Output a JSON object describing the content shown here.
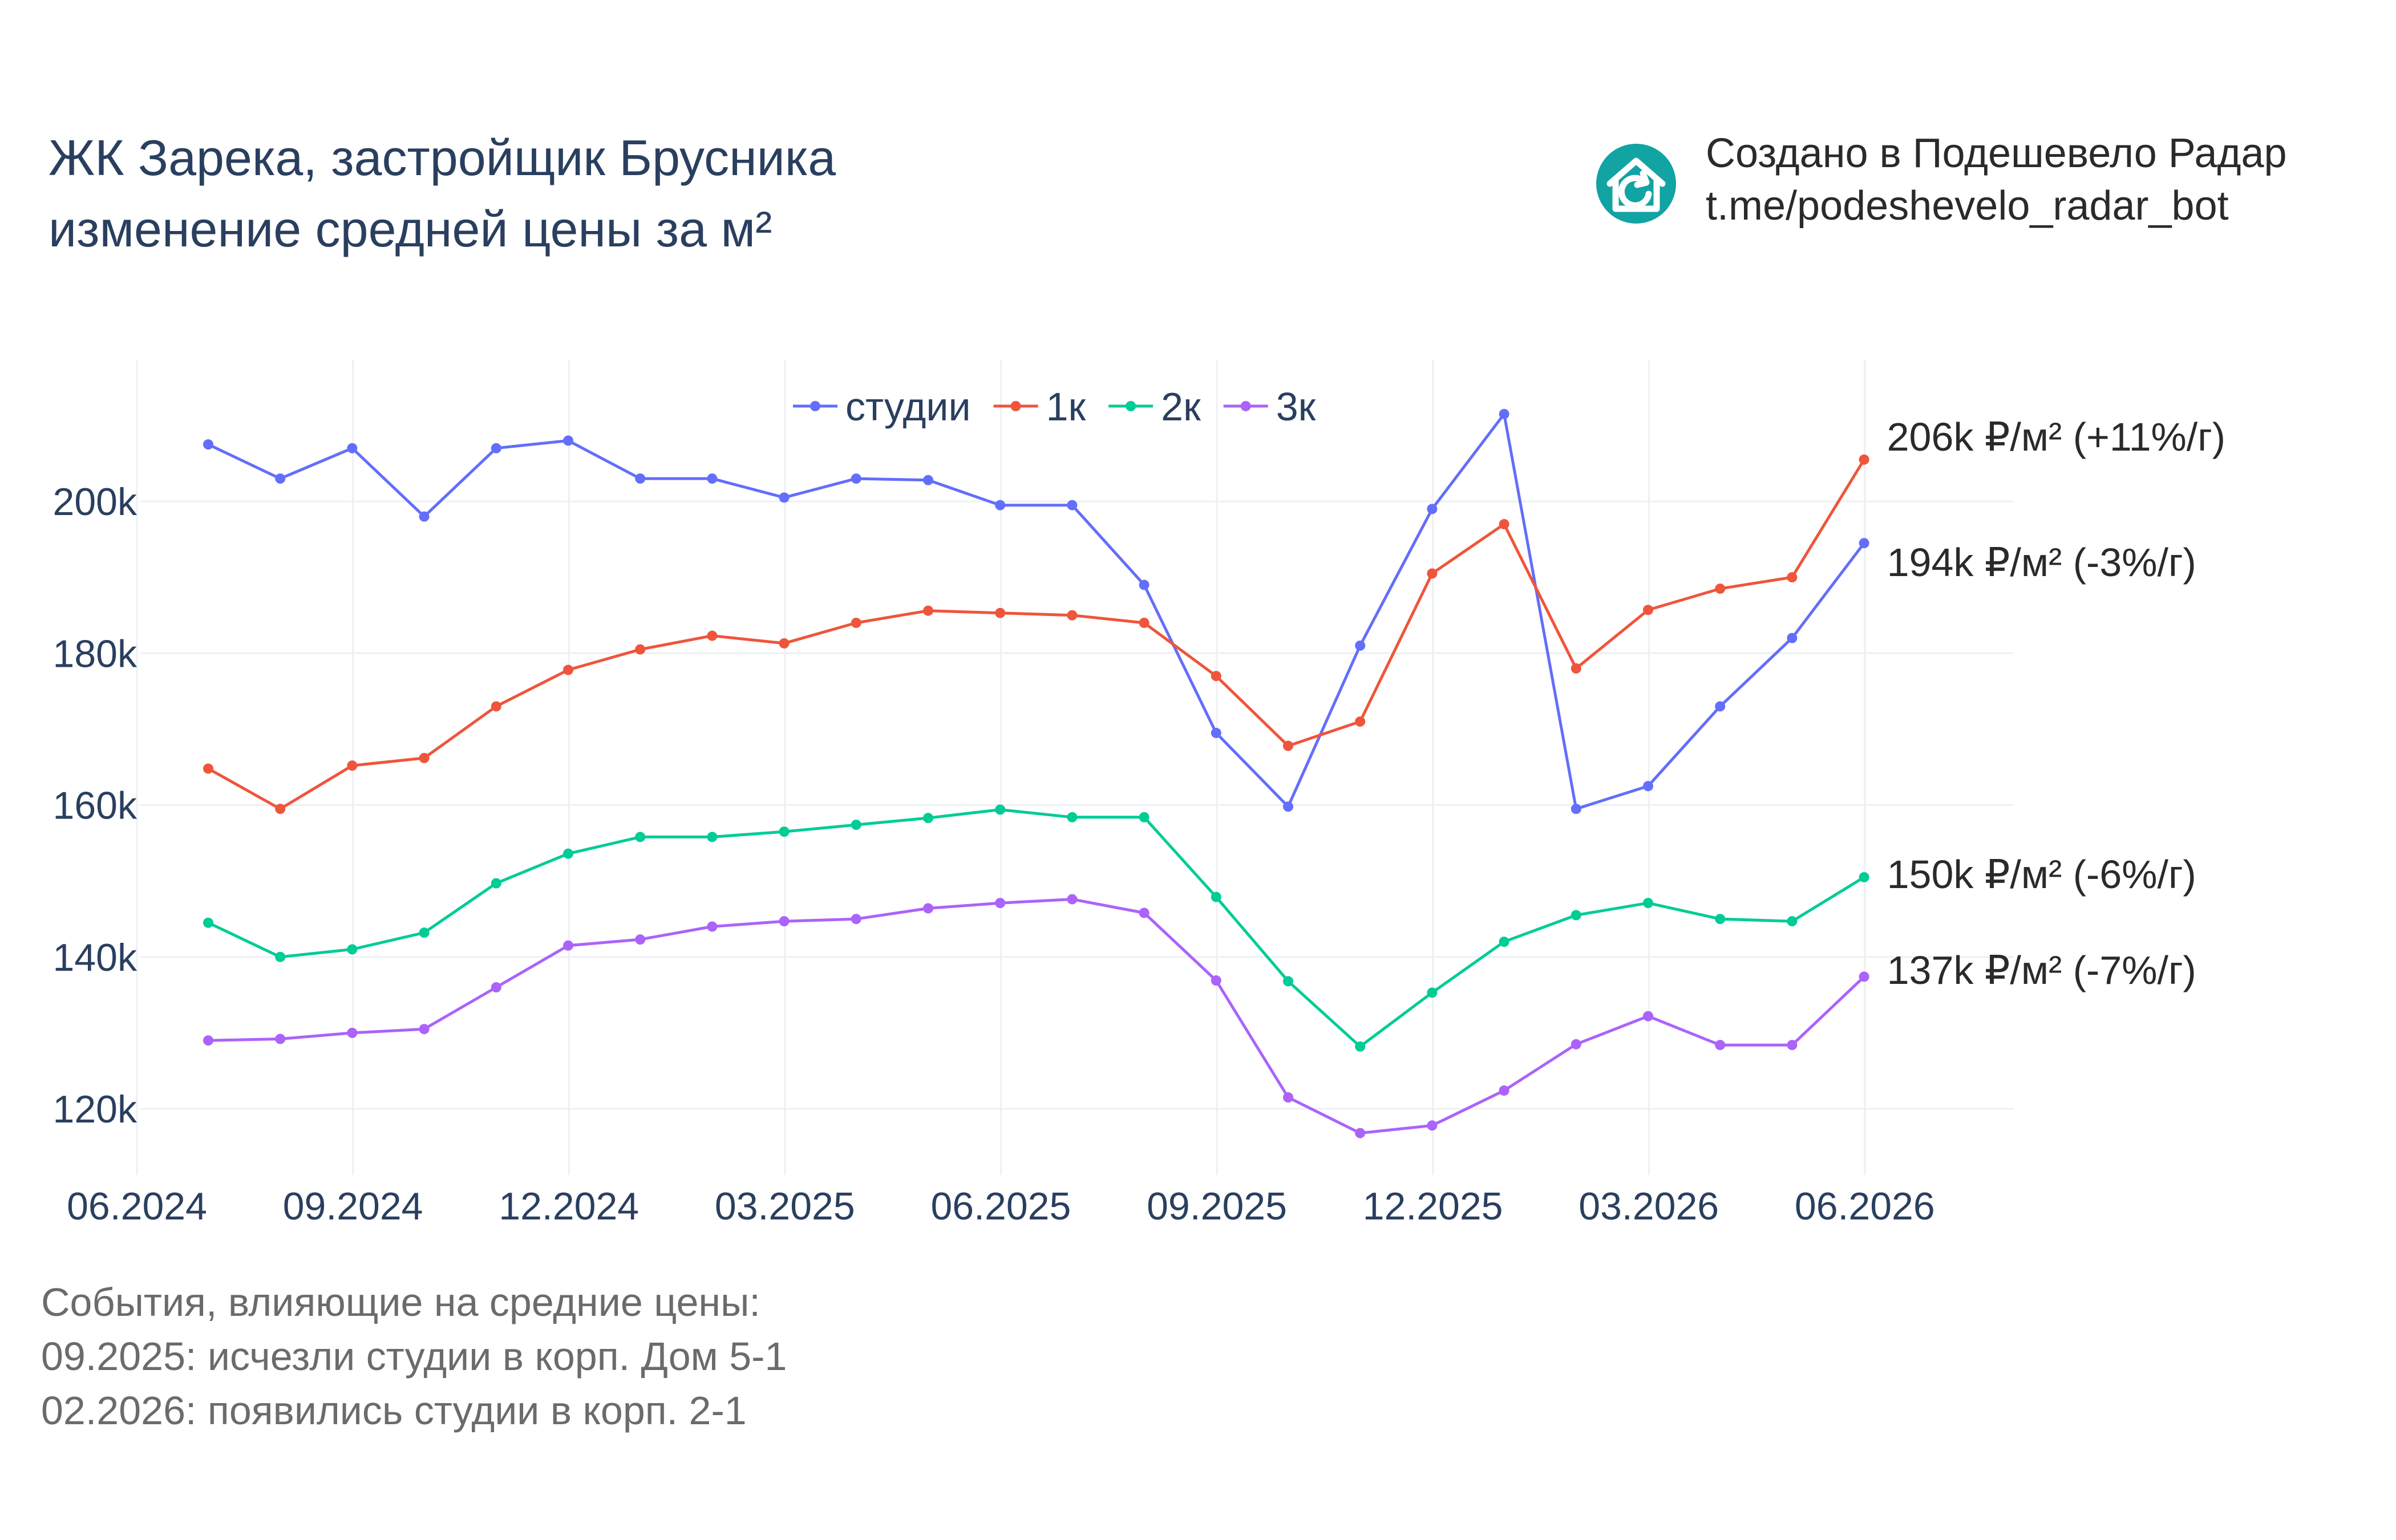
{
  "header": {
    "title_line1": "ЖК Зарека, застройщик Брусника",
    "title_line2": "изменение средней цены за м²",
    "credit_line1": "Создано в Подешевело Радар",
    "credit_line2": "t.me/podeshevelo_radar_bot",
    "logo_icon": "house-refresh-icon",
    "logo_color": "#12a3a3"
  },
  "notes": {
    "heading": "События, влияющие на средние цены:",
    "lines": [
      "09.2025: исчезли студии в корп. Дом 5-1",
      "02.2026: появились студии в корп. 2-1"
    ]
  },
  "chart_data": {
    "type": "line",
    "x": [
      "07.2024",
      "08.2024",
      "09.2024",
      "10.2024",
      "11.2024",
      "12.2024",
      "01.2025",
      "02.2025",
      "03.2025",
      "04.2025",
      "05.2025",
      "06.2025",
      "07.2025",
      "08.2025",
      "09.2025",
      "10.2025",
      "11.2025",
      "12.2025",
      "01.2026",
      "02.2026",
      "03.2026",
      "04.2026",
      "05.2026",
      "06.2026"
    ],
    "x_ticks": [
      "06.2024",
      "09.2024",
      "12.2024",
      "03.2025",
      "06.2025",
      "09.2025",
      "12.2025",
      "03.2026",
      "06.2026"
    ],
    "y_ticks": [
      "120k",
      "140k",
      "160k",
      "180k",
      "200k"
    ],
    "ylim": [
      111000,
      218000
    ],
    "grid": true,
    "legend_position": "top-center",
    "series": [
      {
        "name": "студии",
        "color": "#636efa",
        "values": [
          207500,
          203000,
          207000,
          198000,
          207000,
          208000,
          203000,
          203000,
          200500,
          203000,
          202800,
          199500,
          199500,
          189000,
          169500,
          159800,
          181000,
          199000,
          211500,
          159500,
          162500,
          173000,
          182000,
          194500
        ],
        "end_label": "194k ₽/м² (-3%/г)"
      },
      {
        "name": "1к",
        "color": "#ef553b",
        "values": [
          164800,
          159500,
          165200,
          166200,
          173000,
          177800,
          180500,
          182300,
          181300,
          184000,
          185600,
          185300,
          185000,
          184000,
          177000,
          167800,
          171000,
          190500,
          197000,
          178000,
          185700,
          188500,
          190000,
          205500
        ],
        "end_label": "206k ₽/м² (+11%/г)"
      },
      {
        "name": "2к",
        "color": "#00cc96",
        "values": [
          144500,
          140000,
          141000,
          143200,
          149700,
          153600,
          155800,
          155800,
          156500,
          157400,
          158300,
          159400,
          158400,
          158400,
          147900,
          136800,
          128200,
          135300,
          142000,
          145500,
          147100,
          145000,
          144700,
          150500
        ],
        "end_label": "150k ₽/м² (-6%/г)"
      },
      {
        "name": "3к",
        "color": "#ab63fa",
        "values": [
          129000,
          129200,
          130000,
          130500,
          136000,
          141500,
          142300,
          144000,
          144700,
          145000,
          146400,
          147100,
          147600,
          145800,
          136900,
          121500,
          116800,
          117800,
          122400,
          128500,
          132200,
          128400,
          128400,
          137400
        ],
        "end_label": "137k ₽/м² (-7%/г)"
      }
    ]
  }
}
